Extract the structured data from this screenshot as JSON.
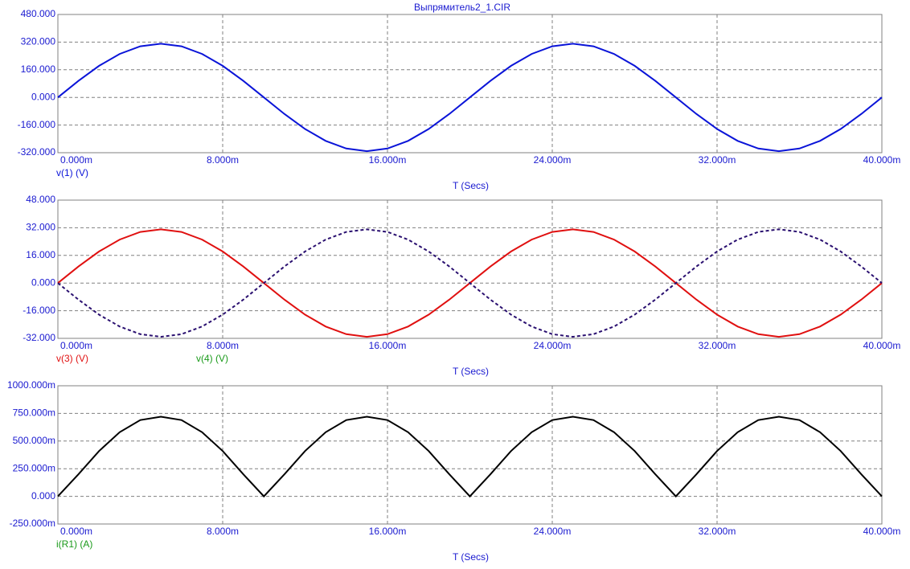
{
  "chart_data": [
    {
      "type": "line",
      "title": "Выпрямитель2_1.CIR",
      "x_label": "T (Secs)",
      "x": [
        0,
        0.001,
        0.002,
        0.003,
        0.004,
        0.005,
        0.006,
        0.007,
        0.008,
        0.009,
        0.01,
        0.011,
        0.012,
        0.013,
        0.014,
        0.015,
        0.016,
        0.017,
        0.018,
        0.019,
        0.02,
        0.021,
        0.022,
        0.023,
        0.024,
        0.025,
        0.026,
        0.027,
        0.028,
        0.029,
        0.03,
        0.031,
        0.032,
        0.033,
        0.034,
        0.035,
        0.036,
        0.037,
        0.038,
        0.039,
        0.04
      ],
      "xlim": [
        0,
        0.04
      ],
      "xticks": [
        {
          "value": 0,
          "label": "0.000m"
        },
        {
          "value": 0.008,
          "label": "8.000m"
        },
        {
          "value": 0.016,
          "label": "16.000m"
        },
        {
          "value": 0.024,
          "label": "24.000m"
        },
        {
          "value": 0.032,
          "label": "32.000m"
        },
        {
          "value": 0.04,
          "label": "40.000m"
        }
      ],
      "ylim": [
        -320,
        480
      ],
      "yticks": [
        {
          "value": -320,
          "label": "-320.000"
        },
        {
          "value": -160,
          "label": "-160.000"
        },
        {
          "value": 0,
          "label": "0.000"
        },
        {
          "value": 160,
          "label": "160.000"
        },
        {
          "value": 320,
          "label": "320.000"
        },
        {
          "value": 480,
          "label": "480.000"
        }
      ],
      "grid": true,
      "series": [
        {
          "name": "v(1) (V)",
          "color": "#0a14d8",
          "label_color": "#0a14d8",
          "dash": false,
          "values": [
            0,
            96.1,
            182.8,
            251.6,
            295.8,
            311,
            295.8,
            251.6,
            182.8,
            96.1,
            0,
            -96.1,
            -182.8,
            -251.6,
            -295.8,
            -311,
            -295.8,
            -251.6,
            -182.8,
            -96.1,
            0,
            96.1,
            182.8,
            251.6,
            295.8,
            311,
            295.8,
            251.6,
            182.8,
            96.1,
            0,
            -96.1,
            -182.8,
            -251.6,
            -295.8,
            -311,
            -295.8,
            -251.6,
            -182.8,
            -96.1,
            0
          ]
        }
      ]
    },
    {
      "type": "line",
      "x_label": "T (Secs)",
      "x": [
        0,
        0.001,
        0.002,
        0.003,
        0.004,
        0.005,
        0.006,
        0.007,
        0.008,
        0.009,
        0.01,
        0.011,
        0.012,
        0.013,
        0.014,
        0.015,
        0.016,
        0.017,
        0.018,
        0.019,
        0.02,
        0.021,
        0.022,
        0.023,
        0.024,
        0.025,
        0.026,
        0.027,
        0.028,
        0.029,
        0.03,
        0.031,
        0.032,
        0.033,
        0.034,
        0.035,
        0.036,
        0.037,
        0.038,
        0.039,
        0.04
      ],
      "xlim": [
        0,
        0.04
      ],
      "xticks": [
        {
          "value": 0,
          "label": "0.000m"
        },
        {
          "value": 0.008,
          "label": "8.000m"
        },
        {
          "value": 0.016,
          "label": "16.000m"
        },
        {
          "value": 0.024,
          "label": "24.000m"
        },
        {
          "value": 0.032,
          "label": "32.000m"
        },
        {
          "value": 0.04,
          "label": "40.000m"
        }
      ],
      "ylim": [
        -32,
        48
      ],
      "yticks": [
        {
          "value": -32,
          "label": "-32.000"
        },
        {
          "value": -16,
          "label": "-16.000"
        },
        {
          "value": 0,
          "label": "0.000"
        },
        {
          "value": 16,
          "label": "16.000"
        },
        {
          "value": 32,
          "label": "32.000"
        },
        {
          "value": 48,
          "label": "48.000"
        }
      ],
      "grid": true,
      "series": [
        {
          "name": "v(3) (V)",
          "color": "#e01010",
          "label_color": "#e01010",
          "dash": false,
          "values": [
            0,
            9.61,
            18.28,
            25.16,
            29.58,
            31.1,
            29.58,
            25.16,
            18.28,
            9.61,
            0,
            -9.61,
            -18.28,
            -25.16,
            -29.58,
            -31.1,
            -29.58,
            -25.16,
            -18.28,
            -9.61,
            0,
            9.61,
            18.28,
            25.16,
            29.58,
            31.1,
            29.58,
            25.16,
            18.28,
            9.61,
            0,
            -9.61,
            -18.28,
            -25.16,
            -29.58,
            -31.1,
            -29.58,
            -25.16,
            -18.28,
            -9.61,
            0
          ]
        },
        {
          "name": "v(4) (V)",
          "color": "#2a1070",
          "label_color": "#1a9a1a",
          "dash": true,
          "values": [
            0,
            -9.61,
            -18.28,
            -25.16,
            -29.58,
            -31.1,
            -29.58,
            -25.16,
            -18.28,
            -9.61,
            0,
            9.61,
            18.28,
            25.16,
            29.58,
            31.1,
            29.58,
            25.16,
            18.28,
            9.61,
            0,
            -9.61,
            -18.28,
            -25.16,
            -29.58,
            -31.1,
            -29.58,
            -25.16,
            -18.28,
            -9.61,
            0,
            9.61,
            18.28,
            25.16,
            29.58,
            31.1,
            29.58,
            25.16,
            18.28,
            9.61,
            0
          ]
        }
      ]
    },
    {
      "type": "line",
      "x_label": "T (Secs)",
      "x": [
        0,
        0.001,
        0.002,
        0.003,
        0.004,
        0.005,
        0.006,
        0.007,
        0.008,
        0.009,
        0.01,
        0.011,
        0.012,
        0.013,
        0.014,
        0.015,
        0.016,
        0.017,
        0.018,
        0.019,
        0.02,
        0.021,
        0.022,
        0.023,
        0.024,
        0.025,
        0.026,
        0.027,
        0.028,
        0.029,
        0.03,
        0.031,
        0.032,
        0.033,
        0.034,
        0.035,
        0.036,
        0.037,
        0.038,
        0.039,
        0.04
      ],
      "xlim": [
        0,
        0.04
      ],
      "xticks": [
        {
          "value": 0,
          "label": "0.000m"
        },
        {
          "value": 0.008,
          "label": "8.000m"
        },
        {
          "value": 0.016,
          "label": "16.000m"
        },
        {
          "value": 0.024,
          "label": "24.000m"
        },
        {
          "value": 0.032,
          "label": "32.000m"
        },
        {
          "value": 0.04,
          "label": "40.000m"
        }
      ],
      "ylim": [
        -0.25,
        1
      ],
      "yticks": [
        {
          "value": -0.25,
          "label": "-250.000m"
        },
        {
          "value": 0,
          "label": "0.000"
        },
        {
          "value": 0.25,
          "label": "250.000m"
        },
        {
          "value": 0.5,
          "label": "500.000m"
        },
        {
          "value": 0.75,
          "label": "750.000m"
        },
        {
          "value": 1,
          "label": "1000.000m"
        }
      ],
      "grid": true,
      "series": [
        {
          "name": "i(R1) (A)",
          "color": "#000000",
          "label_color": "#1a9a1a",
          "dash": false,
          "values": [
            0,
            0.2,
            0.41,
            0.58,
            0.69,
            0.72,
            0.69,
            0.58,
            0.41,
            0.2,
            0,
            0.2,
            0.41,
            0.58,
            0.69,
            0.72,
            0.69,
            0.58,
            0.41,
            0.2,
            0,
            0.2,
            0.41,
            0.58,
            0.69,
            0.72,
            0.69,
            0.58,
            0.41,
            0.2,
            0,
            0.2,
            0.41,
            0.58,
            0.69,
            0.72,
            0.69,
            0.58,
            0.41,
            0.2,
            0
          ]
        }
      ]
    }
  ]
}
